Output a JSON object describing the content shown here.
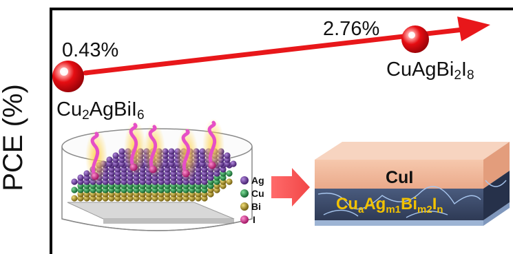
{
  "axis": {
    "ylabel": "PCE (%)"
  },
  "points": [
    {
      "value_label": "0.43%",
      "compound": {
        "base": "Cu",
        "sub1": "2",
        "mid": "AgBiI",
        "sub2": "6"
      }
    },
    {
      "value_label": "2.76%",
      "compound": {
        "base": "CuAgBi",
        "sub1": "2",
        "mid": "I",
        "sub2": "8"
      }
    }
  ],
  "legend": {
    "items": [
      {
        "label": "Ag",
        "color": "#5b2c8c"
      },
      {
        "label": "Cu",
        "color": "#1a9b46"
      },
      {
        "label": "Bi",
        "color": "#a48a12"
      },
      {
        "label": "I",
        "color": "#e0208f"
      }
    ]
  },
  "device": {
    "top_layer": "CuI",
    "bottom_layer": {
      "a": "Cu",
      "s1": "a",
      "b": "Ag",
      "s2": "m1",
      "c": "Bi",
      "s3": "m2",
      "d": "I",
      "s4": "n"
    }
  },
  "colors": {
    "arrow": "#e8171a",
    "sphere": "#e60d12",
    "gold_text": "#f2c200",
    "cui_layer": "#f0b99a",
    "active_layer": "#3a4a6a"
  }
}
